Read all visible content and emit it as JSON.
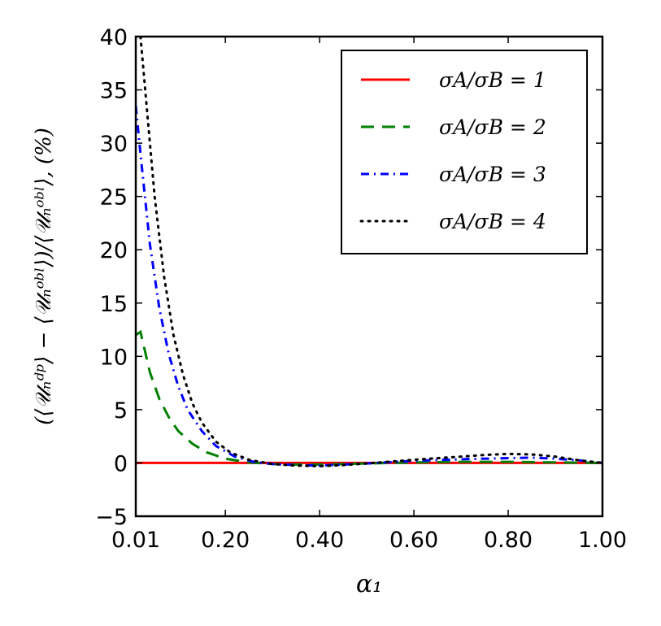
{
  "chart_data": {
    "type": "line",
    "title": "",
    "xlabel": "α₁",
    "ylabel": "(⟨𝒰ₙᵈᵖ⟩ − ⟨𝒰ₙᵒᵇˡ⟩)/⟨𝒰ₙᵒᵇˡ⟩, (%)",
    "xlim": [
      0.01,
      1.0
    ],
    "ylim": [
      -5,
      40
    ],
    "x_ticks": [
      0.01,
      0.2,
      0.4,
      0.6,
      0.8,
      1.0
    ],
    "x_tick_labels": [
      "0.01",
      "0.20",
      "0.40",
      "0.60",
      "0.80",
      "1.00"
    ],
    "y_ticks": [
      -5,
      0,
      5,
      10,
      15,
      20,
      25,
      30,
      35,
      40
    ],
    "y_tick_labels": [
      "−5",
      "0",
      "5",
      "10",
      "15",
      "20",
      "25",
      "30",
      "35",
      "40"
    ],
    "grid": false,
    "legend_position": "top-right",
    "series": [
      {
        "name": "σA/σB = 1",
        "color": "#ff0000",
        "style": "solid",
        "x": [
          0.01,
          0.1,
          0.2,
          0.3,
          0.4,
          0.5,
          0.6,
          0.7,
          0.8,
          0.9,
          1.0
        ],
        "y": [
          0,
          0,
          0,
          0,
          0,
          0,
          0,
          0,
          0,
          0,
          0
        ]
      },
      {
        "name": "σA/σB = 2",
        "color": "#008000",
        "style": "dashed",
        "x": [
          0.01,
          0.02,
          0.04,
          0.06,
          0.08,
          0.1,
          0.13,
          0.16,
          0.2,
          0.25,
          0.3,
          0.35,
          0.4,
          0.5,
          0.6,
          0.7,
          0.8,
          0.9,
          1.0
        ],
        "y": [
          12,
          12.3,
          8.5,
          6.0,
          4.3,
          3.0,
          1.8,
          1.0,
          0.4,
          0.05,
          -0.1,
          -0.15,
          -0.15,
          -0.05,
          0.05,
          0.1,
          0.1,
          0.05,
          0
        ]
      },
      {
        "name": "σA/σB = 3",
        "color": "#0000ff",
        "style": "dashdot",
        "x": [
          0.01,
          0.02,
          0.04,
          0.06,
          0.08,
          0.1,
          0.12,
          0.15,
          0.18,
          0.22,
          0.26,
          0.3,
          0.35,
          0.4,
          0.5,
          0.6,
          0.7,
          0.8,
          0.85,
          0.9,
          0.95,
          1.0
        ],
        "y": [
          33.5,
          29,
          20.5,
          14.5,
          10.2,
          7.2,
          5.0,
          3.0,
          1.6,
          0.6,
          0.1,
          -0.1,
          -0.2,
          -0.25,
          -0.05,
          0.2,
          0.35,
          0.45,
          0.5,
          0.4,
          0.25,
          0
        ]
      },
      {
        "name": "σA/σB = 4",
        "color": "#000000",
        "style": "dotted",
        "x": [
          0.02,
          0.03,
          0.05,
          0.07,
          0.09,
          0.11,
          0.13,
          0.15,
          0.18,
          0.21,
          0.25,
          0.3,
          0.35,
          0.4,
          0.45,
          0.5,
          0.6,
          0.7,
          0.75,
          0.8,
          0.85,
          0.9,
          0.95,
          1.0
        ],
        "y": [
          40,
          35,
          25,
          17.5,
          12,
          8.3,
          5.6,
          3.8,
          2.0,
          1.0,
          0.3,
          -0.1,
          -0.25,
          -0.3,
          -0.2,
          -0.05,
          0.3,
          0.6,
          0.75,
          0.85,
          0.8,
          0.6,
          0.25,
          0
        ]
      }
    ]
  }
}
